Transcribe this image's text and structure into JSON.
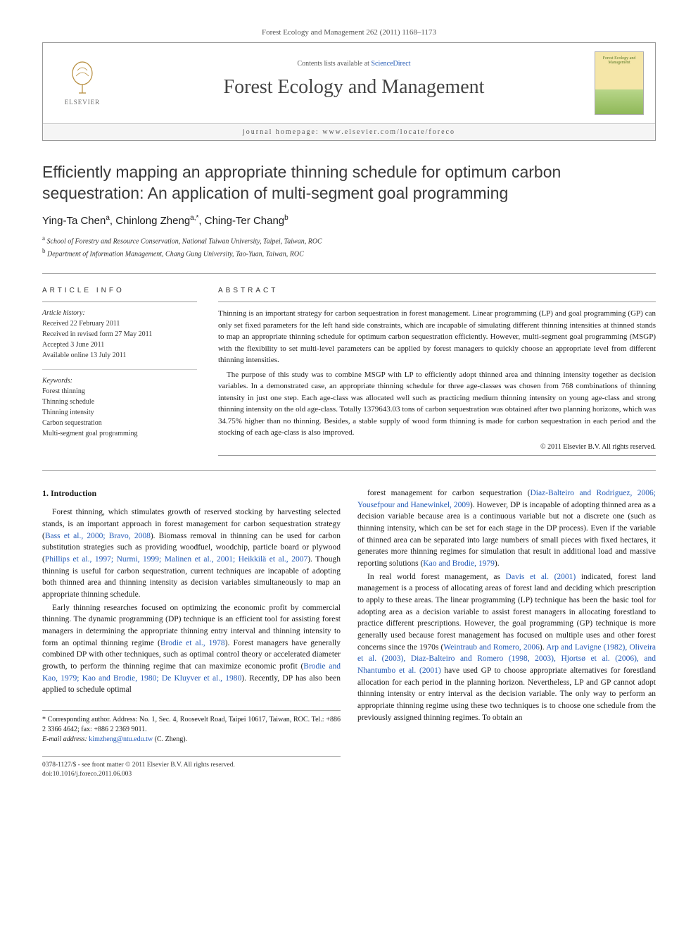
{
  "header_bar": "Forest Ecology and Management 262 (2011) 1168–1173",
  "masthead": {
    "logo_text": "ELSEVIER",
    "contents_prefix": "Contents lists available at ",
    "contents_link": "ScienceDirect",
    "journal_name": "Forest Ecology and Management",
    "homepage_prefix": "journal homepage: ",
    "homepage_url": "www.elsevier.com/locate/foreco",
    "cover_label": "Forest Ecology and Management"
  },
  "title": "Efficiently mapping an appropriate thinning schedule for optimum carbon sequestration: An application of multi-segment goal programming",
  "authors": [
    {
      "name": "Ying-Ta Chen",
      "aff": "a"
    },
    {
      "name": "Chinlong Zheng",
      "aff": "a,*"
    },
    {
      "name": "Ching-Ter Chang",
      "aff": "b"
    }
  ],
  "affiliations": [
    {
      "sup": "a",
      "text": "School of Forestry and Resource Conservation, National Taiwan University, Taipei, Taiwan, ROC"
    },
    {
      "sup": "b",
      "text": "Department of Information Management, Chang Gung University, Tao-Yuan, Taiwan, ROC"
    }
  ],
  "article_info": {
    "heading": "ARTICLE INFO",
    "history_label": "Article history:",
    "history": [
      "Received 22 February 2011",
      "Received in revised form 27 May 2011",
      "Accepted 3 June 2011",
      "Available online 13 July 2011"
    ],
    "keywords_label": "Keywords:",
    "keywords": [
      "Forest thinning",
      "Thinning schedule",
      "Thinning intensity",
      "Carbon sequestration",
      "Multi-segment goal programming"
    ]
  },
  "abstract": {
    "heading": "ABSTRACT",
    "paragraphs": [
      "Thinning is an important strategy for carbon sequestration in forest management. Linear programming (LP) and goal programming (GP) can only set fixed parameters for the left hand side constraints, which are incapable of simulating different thinning intensities at thinned stands to map an appropriate thinning schedule for optimum carbon sequestration efficiently. However, multi-segment goal programming (MSGP) with the flexibility to set multi-level parameters can be applied by forest managers to quickly choose an appropriate level from different thinning intensities.",
      "The purpose of this study was to combine MSGP with LP to efficiently adopt thinned area and thinning intensity together as decision variables. In a demonstrated case, an appropriate thinning schedule for three age-classes was chosen from 768 combinations of thinning intensity in just one step. Each age-class was allocated well such as practicing medium thinning intensity on young age-class and strong thinning intensity on the old age-class. Totally 1379643.03 tons of carbon sequestration was obtained after two planning horizons, which was 34.75% higher than no thinning. Besides, a stable supply of wood form thinning is made for carbon sequestration in each period and the stocking of each age-class is also improved."
    ],
    "copyright": "© 2011 Elsevier B.V. All rights reserved."
  },
  "body": {
    "section_heading": "1. Introduction",
    "col1": [
      "Forest thinning, which stimulates growth of reserved stocking by harvesting selected stands, is an important approach in forest management for carbon sequestration strategy (<a>Bass et al., 2000; Bravo, 2008</a>). Biomass removal in thinning can be used for carbon substitution strategies such as providing woodfuel, woodchip, particle board or plywood (<a>Phillips et al., 1997; Nurmi, 1999; Malinen et al., 2001; Heikkilä et al., 2007</a>). Though thinning is useful for carbon sequestration, current techniques are incapable of adopting both thinned area and thinning intensity as decision variables simultaneously to map an appropriate thinning schedule.",
      "Early thinning researches focused on optimizing the economic profit by commercial thinning. The dynamic programming (DP) technique is an efficient tool for assisting forest managers in determining the appropriate thinning entry interval and thinning intensity to form an optimal thinning regime (<a>Brodie et al., 1978</a>). Forest managers have generally combined DP with other techniques, such as optimal control theory or accelerated diameter growth, to perform the thinning regime that can maximize economic profit (<a>Brodie and Kao, 1979; Kao and Brodie, 1980; De Kluyver et al., 1980</a>). Recently, DP has also been applied to schedule optimal"
    ],
    "col2": [
      "forest management for carbon sequestration (<a>Diaz-Balteiro and Rodriguez, 2006; Yousefpour and Hanewinkel, 2009</a>). However, DP is incapable of adopting thinned area as a decision variable because area is a continuous variable but not a discrete one (such as thinning intensity, which can be set for each stage in the DP process). Even if the variable of thinned area can be separated into large numbers of small pieces with fixed hectares, it generates more thinning regimes for simulation that result in additional load and massive reporting solutions (<a>Kao and Brodie, 1979</a>).",
      "In real world forest management, as <a>Davis et al. (2001)</a> indicated, forest land management is a process of allocating areas of forest land and deciding which prescription to apply to these areas. The linear programming (LP) technique has been the basic tool for adopting area as a decision variable to assist forest managers in allocating forestland to practice different prescriptions. However, the goal programming (GP) technique is more generally used because forest management has focused on multiple uses and other forest concerns since the 1970s (<a>Weintraub and Romero, 2006</a>). <a>Arp and Lavigne (1982), Oliveira et al. (2003), Diaz-Balteiro and Romero (1998, 2003), Hjortsø et al. (2006), and Nhantumbo et al. (2001)</a> have used GP to choose appropriate alternatives for forestland allocation for each period in the planning horizon. Nevertheless, LP and GP cannot adopt thinning intensity or entry interval as the decision variable. The only way to perform an appropriate thinning regime using these two techniques is to choose one schedule from the previously assigned thinning regimes. To obtain an"
    ]
  },
  "footnotes": {
    "corresponding": "* Corresponding author. Address: No. 1, Sec. 4, Roosevelt Road, Taipei 10617, Taiwan, ROC. Tel.: +886 2 3366 4642; fax: +886 2 2369 9011.",
    "email_label": "E-mail address:",
    "email": "kimzheng@ntu.edu.tw",
    "email_suffix": " (C. Zheng)."
  },
  "bottom": {
    "line1": "0378-1127/$ - see front matter © 2011 Elsevier B.V. All rights reserved.",
    "line2": "doi:10.1016/j.foreco.2011.06.003"
  },
  "colors": {
    "link": "#2259b5",
    "text": "#1a1a1a",
    "border": "#999999"
  }
}
